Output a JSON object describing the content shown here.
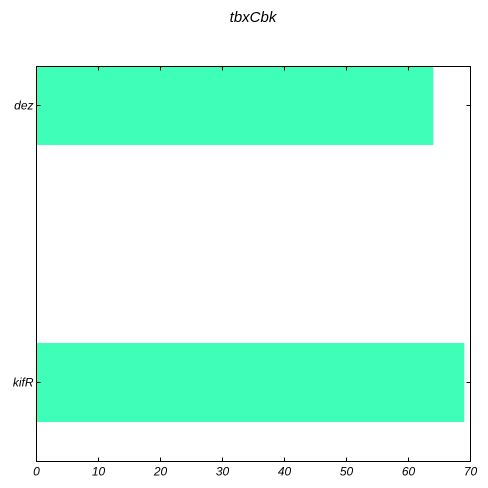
{
  "chart_data": {
    "type": "bar",
    "orientation": "horizontal",
    "title": "tbxCbk",
    "xlabel": "",
    "ylabel": "",
    "categories": [
      "dez",
      "kifR"
    ],
    "values": [
      64,
      69
    ],
    "xlim": [
      0,
      70
    ],
    "xticks": [
      0,
      10,
      20,
      30,
      40,
      50,
      60,
      70
    ],
    "bar_color": "#3fffb8",
    "grid": false,
    "legend": "none"
  }
}
